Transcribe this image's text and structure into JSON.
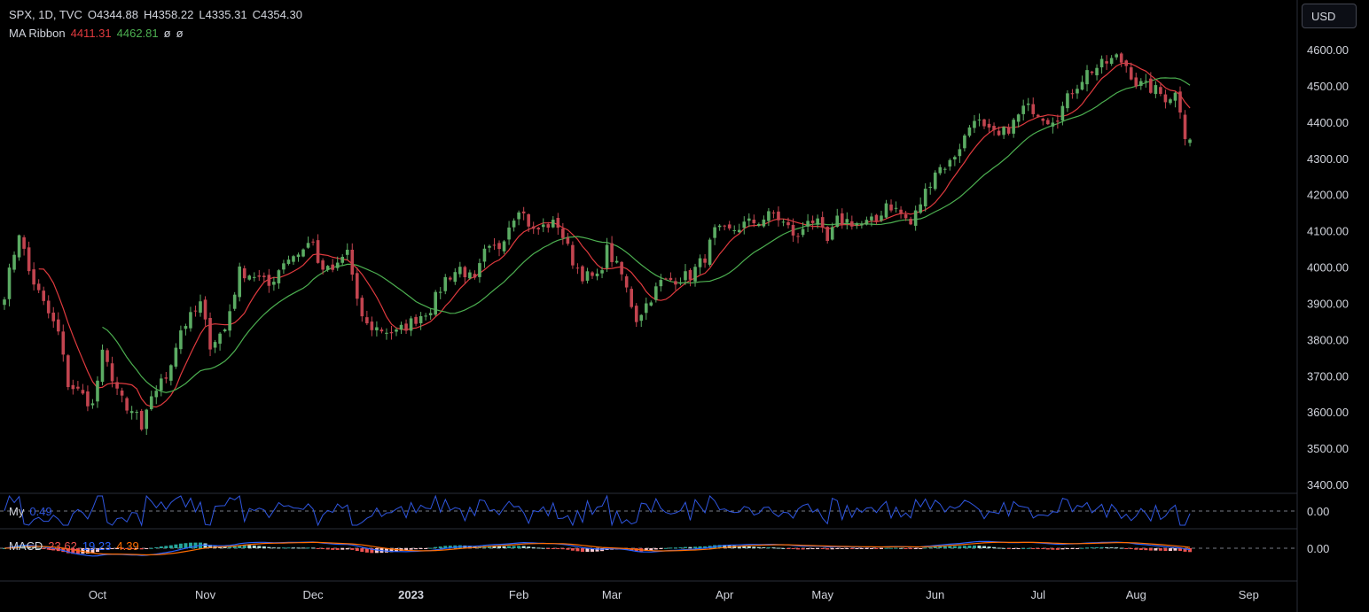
{
  "header": {
    "symbol_line": "SPX, 1D, TVC",
    "open": "O4344.88",
    "high": "H4358.22",
    "low": "L4335.31",
    "close": "C4354.30",
    "ma_label": "MA Ribbon",
    "ma_fast": "4411.31",
    "ma_slow": "4462.81",
    "ma_null1": "ø",
    "ma_null2": "ø",
    "currency": "USD"
  },
  "indicators": {
    "my_label": "My",
    "my_value": "0.49",
    "my_axis_label": "0.00",
    "macd_label": "MACD",
    "macd_value": "23.62",
    "signal_value": "19.23",
    "hist_value": "4.39",
    "macd_axis_label": "0.00"
  },
  "colors": {
    "up": "#5bab63",
    "down": "#c2444f",
    "ma_fast": "#e03a3e",
    "ma_slow": "#4caf50",
    "my_line": "#2f56e0",
    "macd_line": "#2962ff",
    "signal_line": "#ff6d00"
  },
  "chart_data": {
    "type": "candlestick",
    "ylim": [
      3380,
      4640
    ],
    "y_ticks": [
      4600,
      4500,
      4400,
      4300,
      4200,
      4100,
      4000,
      3900,
      3800,
      3700,
      3600,
      3500,
      3400
    ],
    "y_tick_labels": [
      "4600.00",
      "4500.00",
      "4400.00",
      "4300.00",
      "4200.00",
      "4100.00",
      "4000.00",
      "3900.00",
      "3800.00",
      "3700.00",
      "3600.00",
      "3500.00",
      "3400.00"
    ],
    "x_labels": [
      {
        "label": "Oct",
        "idx": 19
      },
      {
        "label": "Nov",
        "idx": 41
      },
      {
        "label": "Dec",
        "idx": 63
      },
      {
        "label": "2023",
        "idx": 83,
        "bold": true
      },
      {
        "label": "Feb",
        "idx": 105
      },
      {
        "label": "Mar",
        "idx": 124
      },
      {
        "label": "Apr",
        "idx": 147
      },
      {
        "label": "May",
        "idx": 167
      },
      {
        "label": "Jun",
        "idx": 190
      },
      {
        "label": "Jul",
        "idx": 211
      },
      {
        "label": "Aug",
        "idx": 231
      },
      {
        "label": "Sep",
        "idx": 254
      }
    ],
    "anchors": [
      [
        0,
        3930
      ],
      [
        3,
        4100
      ],
      [
        5,
        3990
      ],
      [
        8,
        3900
      ],
      [
        11,
        3820
      ],
      [
        13,
        3680
      ],
      [
        15,
        3660
      ],
      [
        18,
        3620
      ],
      [
        20,
        3760
      ],
      [
        22,
        3700
      ],
      [
        25,
        3600
      ],
      [
        27,
        3600
      ],
      [
        28,
        3540
      ],
      [
        30,
        3650
      ],
      [
        33,
        3700
      ],
      [
        36,
        3830
      ],
      [
        39,
        3880
      ],
      [
        40,
        3900
      ],
      [
        42,
        3790
      ],
      [
        45,
        3830
      ],
      [
        48,
        3990
      ],
      [
        51,
        3980
      ],
      [
        54,
        3950
      ],
      [
        57,
        4020
      ],
      [
        61,
        4050
      ],
      [
        63,
        4080
      ],
      [
        64,
        4000
      ],
      [
        67,
        3990
      ],
      [
        70,
        4050
      ],
      [
        72,
        3900
      ],
      [
        74,
        3840
      ],
      [
        77,
        3830
      ],
      [
        80,
        3820
      ],
      [
        83,
        3850
      ],
      [
        85,
        3870
      ],
      [
        87,
        3890
      ],
      [
        90,
        3970
      ],
      [
        93,
        4000
      ],
      [
        96,
        3960
      ],
      [
        98,
        4040
      ],
      [
        101,
        4060
      ],
      [
        103,
        4120
      ],
      [
        105,
        4170
      ],
      [
        108,
        4100
      ],
      [
        111,
        4120
      ],
      [
        113,
        4120
      ],
      [
        116,
        4020
      ],
      [
        118,
        3980
      ],
      [
        121,
        3970
      ],
      [
        123,
        4050
      ],
      [
        126,
        3980
      ],
      [
        128,
        3900
      ],
      [
        129,
        3860
      ],
      [
        131,
        3900
      ],
      [
        134,
        3960
      ],
      [
        137,
        3970
      ],
      [
        140,
        3980
      ],
      [
        143,
        4030
      ],
      [
        145,
        4100
      ],
      [
        148,
        4100
      ],
      [
        151,
        4120
      ],
      [
        154,
        4130
      ],
      [
        157,
        4150
      ],
      [
        160,
        4110
      ],
      [
        162,
        4080
      ],
      [
        164,
        4140
      ],
      [
        166,
        4120
      ],
      [
        168,
        4070
      ],
      [
        170,
        4130
      ],
      [
        172,
        4130
      ],
      [
        175,
        4120
      ],
      [
        178,
        4130
      ],
      [
        180,
        4180
      ],
      [
        183,
        4150
      ],
      [
        185,
        4120
      ],
      [
        187,
        4180
      ],
      [
        190,
        4270
      ],
      [
        193,
        4290
      ],
      [
        196,
        4360
      ],
      [
        198,
        4420
      ],
      [
        200,
        4380
      ],
      [
        203,
        4360
      ],
      [
        206,
        4400
      ],
      [
        208,
        4440
      ],
      [
        210,
        4440
      ],
      [
        213,
        4410
      ],
      [
        215,
        4420
      ],
      [
        218,
        4490
      ],
      [
        221,
        4540
      ],
      [
        224,
        4560
      ],
      [
        227,
        4580
      ],
      [
        229,
        4560
      ],
      [
        231,
        4510
      ],
      [
        233,
        4500
      ],
      [
        235,
        4490
      ],
      [
        237,
        4470
      ],
      [
        239,
        4480
      ],
      [
        240,
        4440
      ],
      [
        241,
        4370
      ],
      [
        242,
        4350
      ]
    ],
    "last": {
      "open": 4344.88,
      "high": 4358.22,
      "low": 4335.31,
      "close": 4354.3
    },
    "series": [
      {
        "name": "4411.31",
        "type": "sma",
        "period": 8
      },
      {
        "name": "4462.81",
        "type": "sma",
        "period": 21
      }
    ]
  }
}
